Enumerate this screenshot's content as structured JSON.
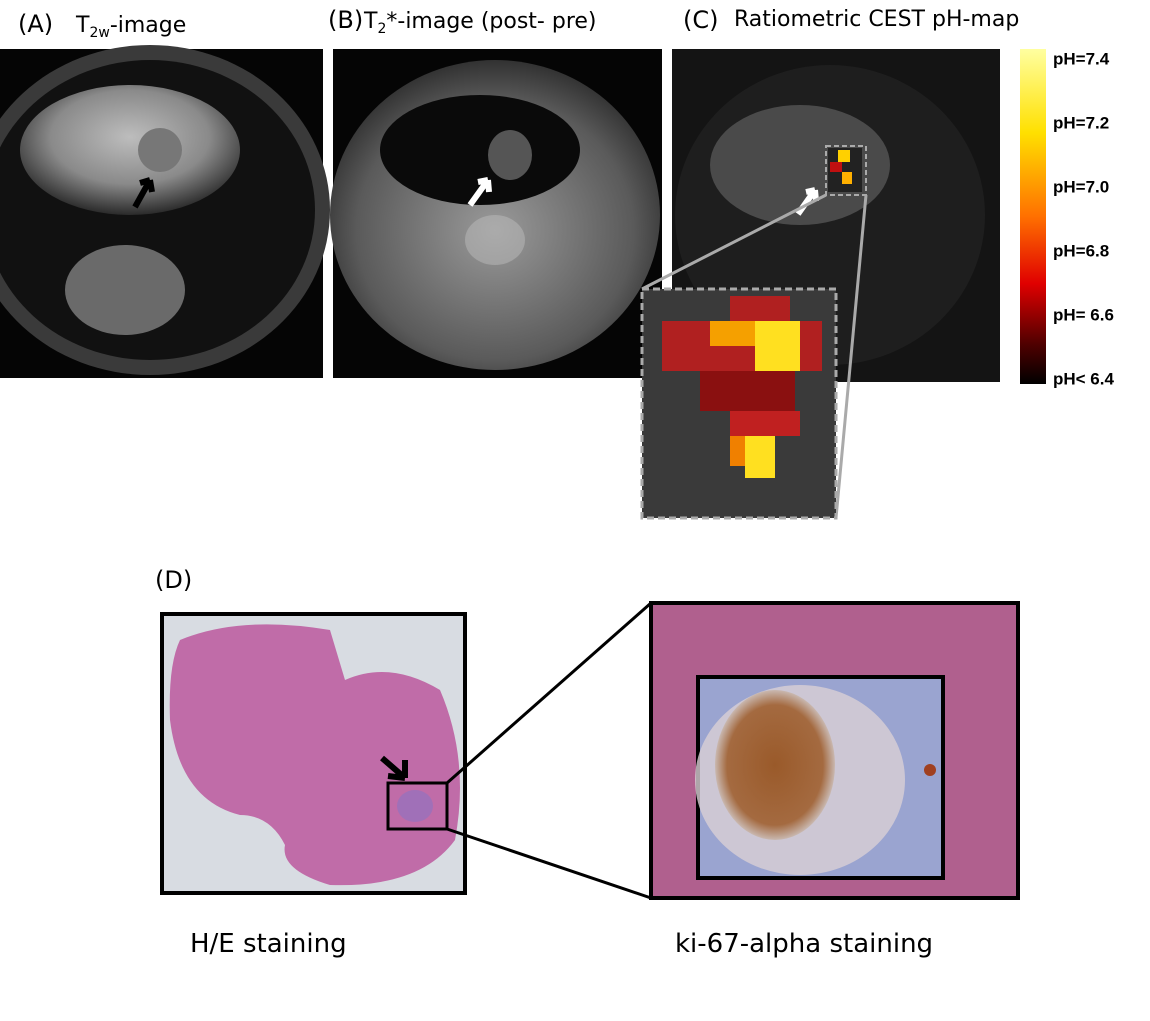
{
  "panels": [
    {
      "label": "(A)",
      "title": {
        "main": "T",
        "sub": "2w",
        "rest": "-image"
      }
    },
    {
      "label": "(B)",
      "title": {
        "main": "T",
        "sub": "2",
        "rest": "*-image (post- pre)"
      }
    },
    {
      "label": "(C)",
      "title": {
        "main": "Ratiometric CEST pH-map"
      }
    },
    {
      "label": "(D)"
    }
  ],
  "colorbar": {
    "labels": [
      "pH=7.4",
      "pH=7.2",
      "pH=7.0",
      "pH=6.8",
      "pH= 6.6",
      "pH< 6.4"
    ]
  },
  "captions": [
    "H/E staining",
    "ki-67-alpha staining"
  ]
}
